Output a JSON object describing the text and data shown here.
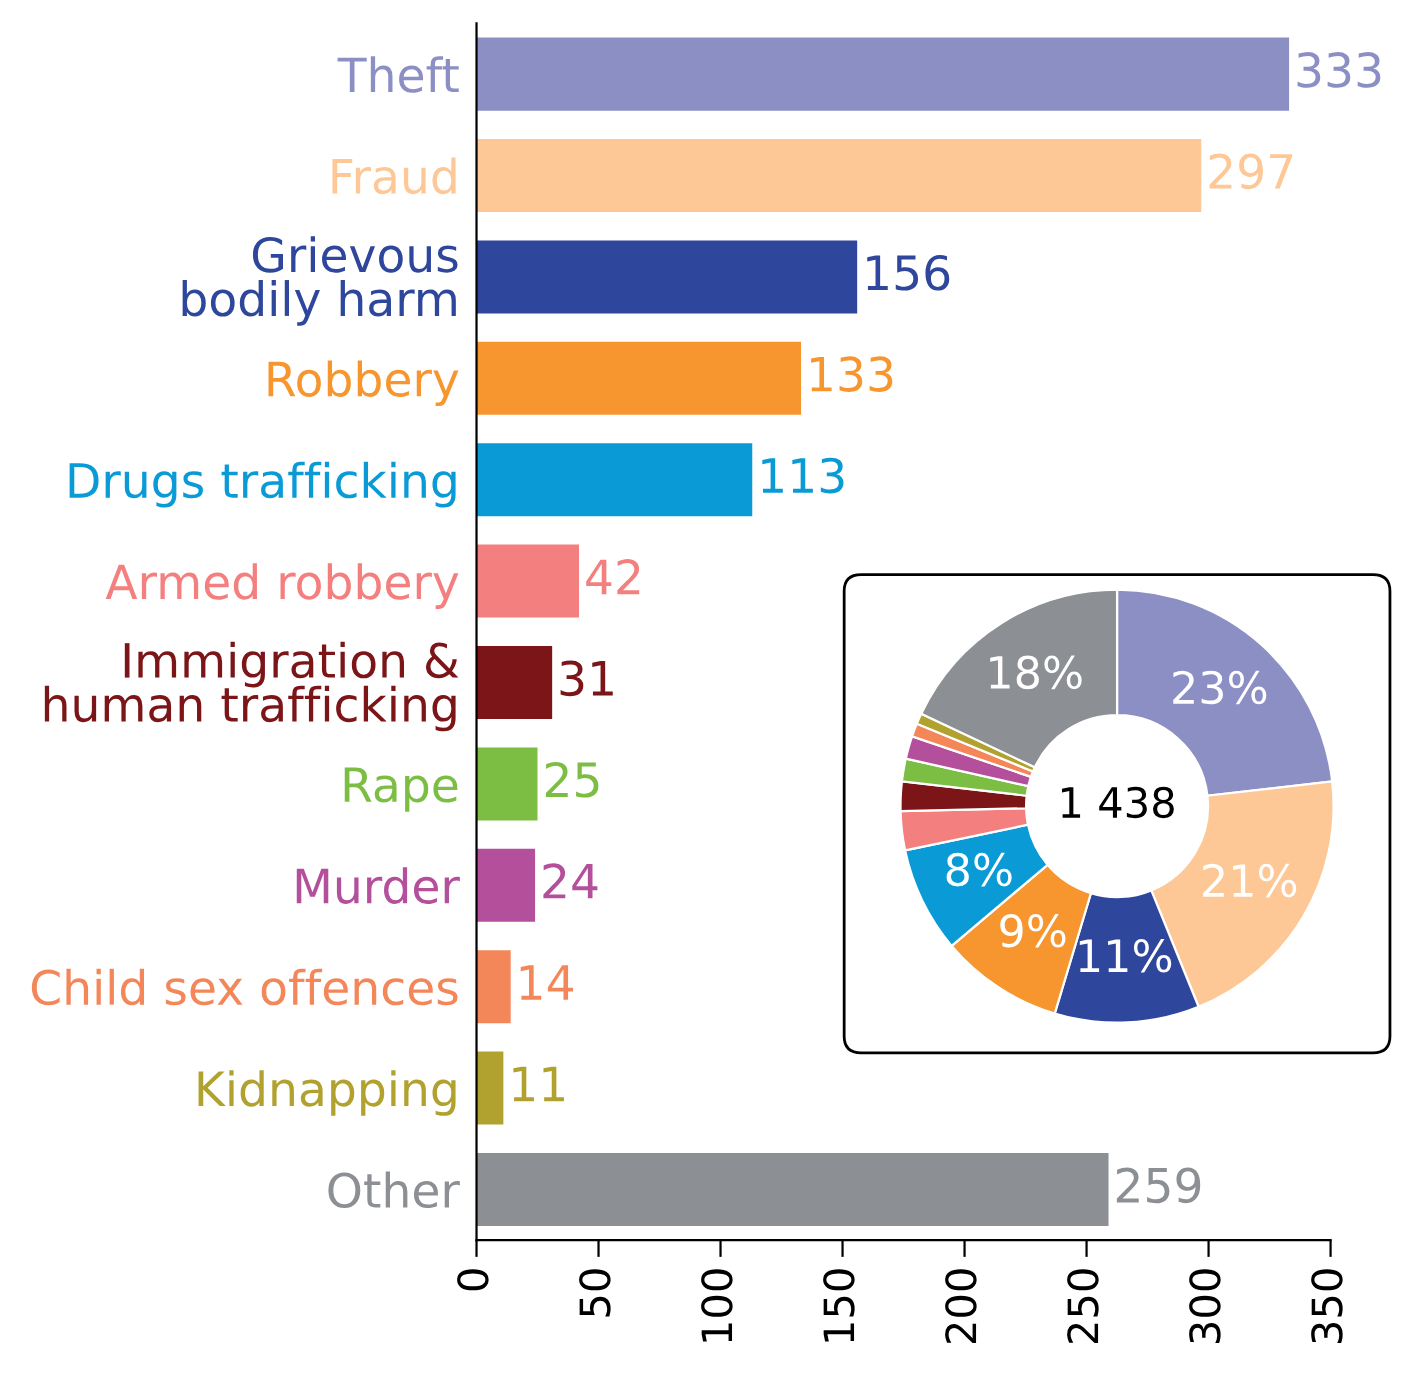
{
  "chart_data": [
    {
      "type": "bar",
      "orientation": "horizontal",
      "categories": [
        "Theft",
        "Fraud",
        "Grievous\nbodily harm",
        "Robbery",
        "Drugs trafficking",
        "Armed robbery",
        "Immigration &\nhuman trafficking",
        "Rape",
        "Murder",
        "Child sex offences",
        "Kidnapping",
        "Other"
      ],
      "values": [
        333,
        297,
        156,
        133,
        113,
        42,
        31,
        25,
        24,
        14,
        11,
        259
      ],
      "colors": [
        "#8b8fc4",
        "#fdc896",
        "#2e479c",
        "#f7962e",
        "#0a9bd6",
        "#f47f7f",
        "#7b1518",
        "#7cbd43",
        "#b44f9c",
        "#f3875a",
        "#b1a230",
        "#8c8f93"
      ],
      "xlim": [
        0,
        350
      ],
      "xticks": [
        0,
        50,
        100,
        150,
        200,
        250,
        300,
        350
      ],
      "data_labels": true,
      "grid": false,
      "legend": false
    },
    {
      "type": "donut",
      "categories": [
        null,
        null,
        null,
        null,
        null,
        null,
        null,
        null,
        null,
        null,
        null,
        null
      ],
      "values": [
        23.2,
        20.7,
        10.8,
        9.2,
        7.9,
        2.9,
        2.2,
        1.7,
        1.7,
        1.0,
        0.8,
        18.0
      ],
      "value_labels": [
        "23%",
        "21%",
        "11%",
        "9%",
        "8%",
        null,
        null,
        null,
        null,
        null,
        null,
        "18%"
      ],
      "colors": [
        "#8b8fc4",
        "#fdc896",
        "#2e479c",
        "#f7962e",
        "#0a9bd6",
        "#f47f7f",
        "#7b1518",
        "#7cbd43",
        "#b44f9c",
        "#f3875a",
        "#b1a230",
        "#8c8f93"
      ],
      "annotations": [
        "1 438"
      ],
      "legend": false
    }
  ]
}
